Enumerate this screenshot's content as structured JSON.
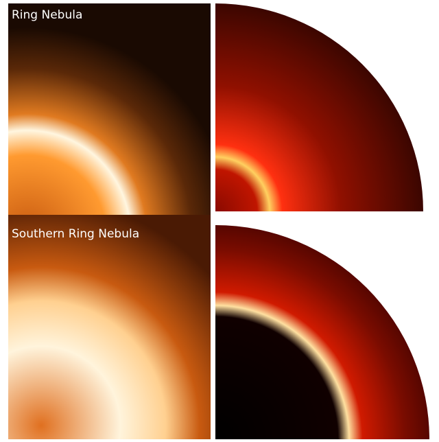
{
  "panels": [
    {
      "label": "Ring Nebula"
    },
    {
      "label": "Southern Ring Nebula"
    }
  ]
}
